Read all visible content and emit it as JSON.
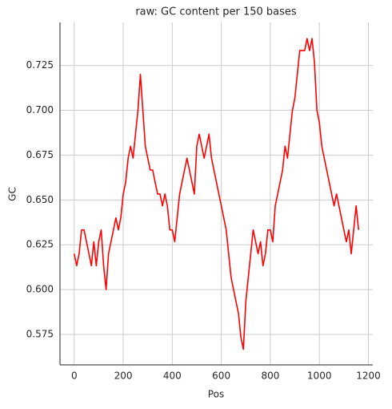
{
  "chart_data": {
    "type": "line",
    "title": "raw: GC content per 150 bases",
    "x_label": "Pos",
    "y_label": "GC",
    "x": [
      0,
      10,
      20,
      30,
      40,
      50,
      60,
      70,
      80,
      90,
      100,
      110,
      120,
      130,
      140,
      150,
      160,
      170,
      180,
      190,
      200,
      210,
      220,
      230,
      240,
      250,
      260,
      270,
      280,
      290,
      300,
      310,
      320,
      330,
      340,
      350,
      360,
      370,
      380,
      390,
      400,
      410,
      420,
      430,
      440,
      450,
      460,
      470,
      480,
      490,
      500,
      510,
      520,
      530,
      540,
      550,
      560,
      570,
      580,
      590,
      600,
      610,
      620,
      630,
      640,
      650,
      660,
      670,
      680,
      690,
      700,
      710,
      720,
      730,
      740,
      750,
      760,
      770,
      780,
      790,
      800,
      810,
      820,
      830,
      840,
      850,
      860,
      870,
      880,
      890,
      900,
      910,
      920,
      930,
      940,
      950,
      960,
      970,
      980,
      990,
      1000,
      1010,
      1020,
      1030,
      1040,
      1050,
      1060,
      1070,
      1080,
      1090,
      1100,
      1110,
      1120,
      1130,
      1140,
      1150,
      1160
    ],
    "series": [
      {
        "name": "GC",
        "color": "#ff0000",
        "values": [
          0.62,
          0.6133,
          0.62,
          0.6333,
          0.6333,
          0.6267,
          0.62,
          0.6133,
          0.6267,
          0.6133,
          0.6267,
          0.6333,
          0.6133,
          0.6,
          0.62,
          0.6267,
          0.6333,
          0.64,
          0.6333,
          0.64,
          0.6533,
          0.66,
          0.6733,
          0.68,
          0.6733,
          0.6867,
          0.7,
          0.72,
          0.7,
          0.68,
          0.6733,
          0.6667,
          0.6667,
          0.66,
          0.6533,
          0.6533,
          0.6467,
          0.6533,
          0.6467,
          0.6333,
          0.6333,
          0.6267,
          0.64,
          0.6533,
          0.66,
          0.6667,
          0.6733,
          0.6667,
          0.66,
          0.6533,
          0.68,
          0.6867,
          0.68,
          0.6733,
          0.68,
          0.6867,
          0.6733,
          0.6667,
          0.66,
          0.6533,
          0.6467,
          0.64,
          0.6333,
          0.62,
          0.6067,
          0.6,
          0.5933,
          0.5867,
          0.5733,
          0.5667,
          0.5933,
          0.6067,
          0.62,
          0.6333,
          0.6267,
          0.62,
          0.6267,
          0.6133,
          0.62,
          0.6333,
          0.6333,
          0.6267,
          0.6467,
          0.6533,
          0.66,
          0.6667,
          0.68,
          0.6733,
          0.6867,
          0.7,
          0.7067,
          0.72,
          0.7333,
          0.7333,
          0.7333,
          0.74,
          0.7333,
          0.74,
          0.7267,
          0.7,
          0.6933,
          0.68,
          0.6733,
          0.6667,
          0.66,
          0.6533,
          0.6467,
          0.6533,
          0.6467,
          0.64,
          0.6333,
          0.6267,
          0.6333,
          0.62,
          0.6333,
          0.6467,
          0.6333
        ]
      }
    ],
    "xlim": [
      -58,
      1218
    ],
    "xticks": [
      0,
      200,
      400,
      600,
      800,
      1000,
      1200
    ],
    "ylim": [
      0.558,
      0.749
    ],
    "yticks": [
      0.575,
      {
        "value": 0.6,
        "label": "0.600"
      },
      0.625,
      {
        "value": 0.65,
        "label": "0.650"
      },
      0.675,
      {
        "value": 0.7,
        "label": "0.700"
      },
      0.725
    ],
    "grid": true
  }
}
